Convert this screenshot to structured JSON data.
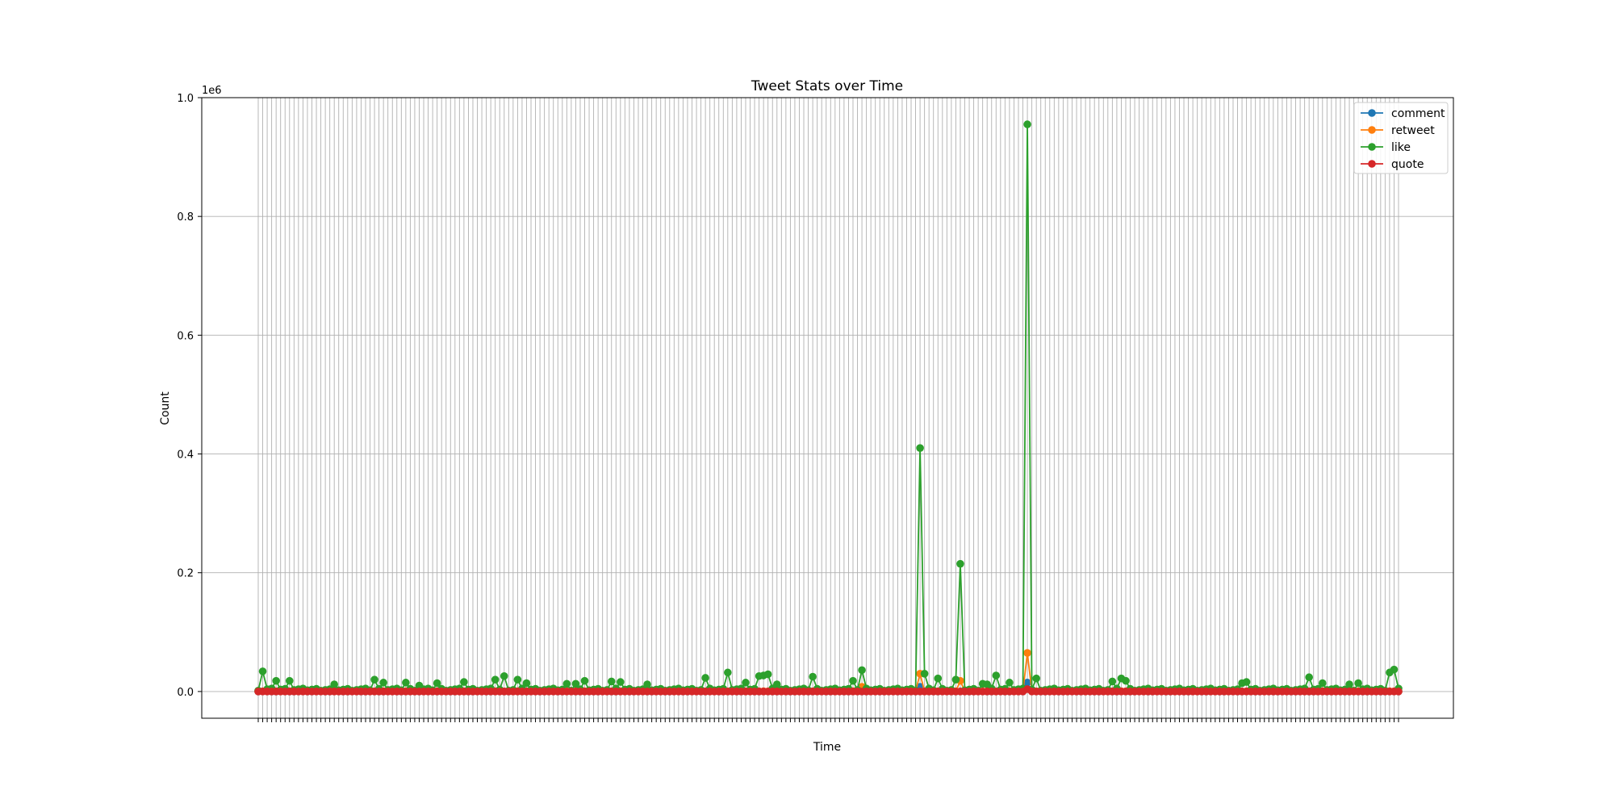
{
  "chart_data": {
    "type": "line",
    "title": "Tweet Stats over Time",
    "xlabel": "Time",
    "ylabel": "Count",
    "y_offset_text": "1e6",
    "ylim": [
      -0.045,
      1.0
    ],
    "y_scale_multiplier": 1000000,
    "yticks": [
      0.0,
      0.2,
      0.4,
      0.6,
      0.8,
      1.0
    ],
    "ytick_labels": [
      "0.0",
      "0.2",
      "0.4",
      "0.6",
      "0.8",
      "1.0"
    ],
    "grid": true,
    "legend_position": "upper-right",
    "n_points": 256,
    "series": [
      {
        "name": "comment",
        "color": "#1f77b4",
        "values": []
      },
      {
        "name": "retweet",
        "color": "#ff7f0e",
        "values": []
      },
      {
        "name": "like",
        "color": "#2ca02c",
        "values": []
      },
      {
        "name": "quote",
        "color": "#d62728",
        "values": []
      }
    ],
    "like_peaks": {
      "1": 34000,
      "4": 18000,
      "7": 18000,
      "17": 12000,
      "26": 20000,
      "28": 15000,
      "33": 15000,
      "36": 10000,
      "40": 14000,
      "46": 16000,
      "53": 20000,
      "55": 26000,
      "58": 20000,
      "60": 14000,
      "69": 13000,
      "71": 13000,
      "73": 18000,
      "79": 17000,
      "81": 16000,
      "87": 12000,
      "100": 23000,
      "105": 32000,
      "109": 15000,
      "112": 26000,
      "113": 27000,
      "114": 29000,
      "116": 12000,
      "124": 25000,
      "133": 18000,
      "135": 36000,
      "148": 410000,
      "149": 30000,
      "152": 22000,
      "156": 20000,
      "157": 215000,
      "162": 13000,
      "163": 12000,
      "165": 27000,
      "168": 15000,
      "172": 955000,
      "174": 22000,
      "191": 17000,
      "193": 22000,
      "194": 18000,
      "220": 14000,
      "221": 16000,
      "235": 24000,
      "238": 14000,
      "244": 12000,
      "246": 14000,
      "253": 32000,
      "254": 37000
    },
    "retweet_peaks": {
      "148": 30000,
      "157": 18000,
      "172": 65000,
      "135": 8000
    },
    "comment_peaks": {
      "148": 8000,
      "172": 15000
    },
    "quote_peaks": {
      "172": 4000
    }
  }
}
